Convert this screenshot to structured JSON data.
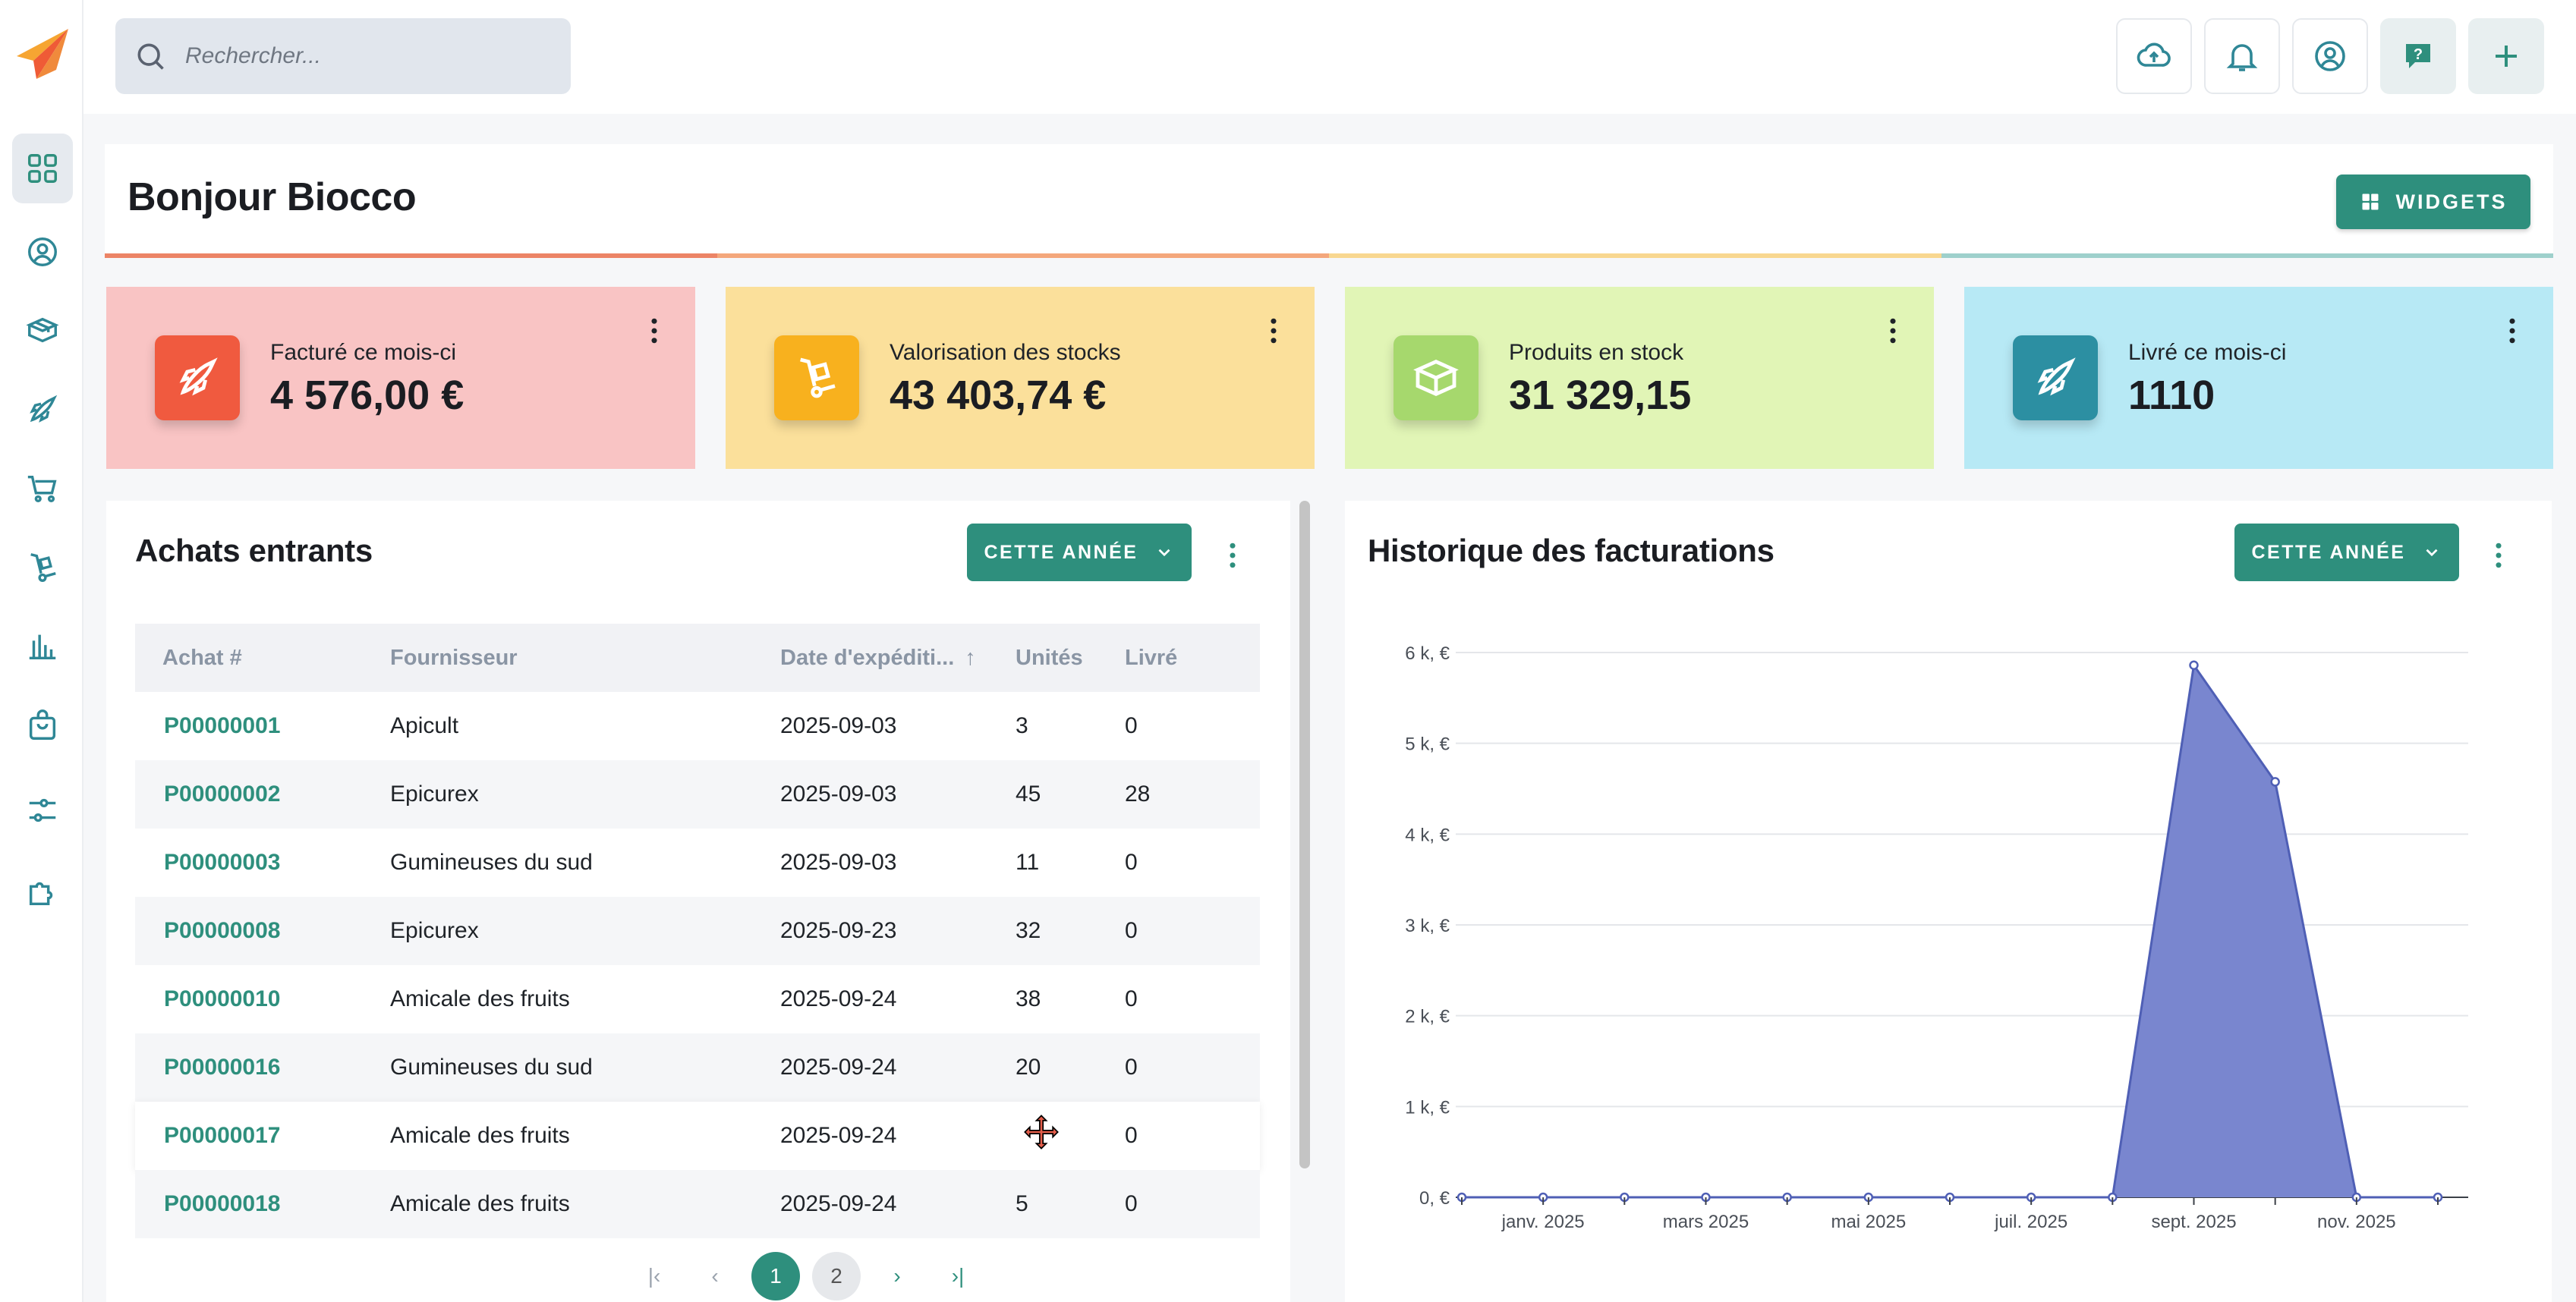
{
  "search": {
    "placeholder": "Rechercher..."
  },
  "header": {
    "title": "Bonjour Biocco",
    "widgets_label": "WIDGETS"
  },
  "colors": {
    "accent": "#2e8f7d",
    "chart_fill": "#7986cf",
    "chart_line": "#4f5fb5",
    "stripe_red": "#ec8466",
    "stripe_orange": "#f4a77c",
    "stripe_yellow": "#f8d790",
    "stripe_teal": "#9ed0cc"
  },
  "stats": [
    {
      "label": "Facturé ce mois-ci",
      "value": "4 576,00 €",
      "icon": "rocket-icon",
      "bg": "#f9c4c4",
      "icon_bg": "#f05a3f"
    },
    {
      "label": "Valorisation des stocks",
      "value": "43 403,74 €",
      "icon": "hand-truck-icon",
      "bg": "#fbe09b",
      "icon_bg": "#f8b11e"
    },
    {
      "label": "Produits en stock",
      "value": "31 329,15",
      "icon": "box-icon",
      "bg": "#e1f5b6",
      "icon_bg": "#a6d86d"
    },
    {
      "label": "Livré ce mois-ci",
      "value": "1110",
      "icon": "rocket-icon",
      "bg": "#b7e9f5",
      "icon_bg": "#2c8fa2"
    }
  ],
  "purchases": {
    "title": "Achats entrants",
    "period": "CETTE ANNÉE",
    "columns": [
      "Achat #",
      "Fournisseur",
      "Date d'expéditi...",
      "Unités",
      "Livré"
    ],
    "rows": [
      {
        "id": "P00000001",
        "supplier": "Apicult",
        "date": "2025-09-03",
        "units": "3",
        "delivered": "0"
      },
      {
        "id": "P00000002",
        "supplier": "Epicurex",
        "date": "2025-09-03",
        "units": "45",
        "delivered": "28"
      },
      {
        "id": "P00000003",
        "supplier": "Gumineuses du sud",
        "date": "2025-09-03",
        "units": "11",
        "delivered": "0"
      },
      {
        "id": "P00000008",
        "supplier": "Epicurex",
        "date": "2025-09-23",
        "units": "32",
        "delivered": "0"
      },
      {
        "id": "P00000010",
        "supplier": "Amicale des fruits",
        "date": "2025-09-24",
        "units": "38",
        "delivered": "0"
      },
      {
        "id": "P00000016",
        "supplier": "Gumineuses du sud",
        "date": "2025-09-24",
        "units": "20",
        "delivered": "0"
      },
      {
        "id": "P00000017",
        "supplier": "Amicale des fruits",
        "date": "2025-09-24",
        "units": "",
        "delivered": "0"
      },
      {
        "id": "P00000018",
        "supplier": "Amicale des fruits",
        "date": "2025-09-24",
        "units": "5",
        "delivered": "0"
      }
    ],
    "pagination": {
      "pages": [
        "1",
        "2"
      ],
      "current": "1"
    }
  },
  "billing": {
    "title": "Historique des facturations",
    "period": "CETTE ANNÉE"
  },
  "chart_data": {
    "type": "area",
    "title": "Historique des facturations",
    "x": [
      "2024-12",
      "2025-01",
      "2025-02",
      "2025-03",
      "2025-04",
      "2025-05",
      "2025-06",
      "2025-07",
      "2025-08",
      "2025-09",
      "2025-10",
      "2025-11",
      "2025-12"
    ],
    "x_tick_labels": [
      "janv. 2025",
      "mars 2025",
      "mai 2025",
      "juil. 2025",
      "sept. 2025",
      "nov. 2025"
    ],
    "x_tick_positions": [
      "2025-01",
      "2025-03",
      "2025-05",
      "2025-07",
      "2025-09",
      "2025-11"
    ],
    "series": [
      {
        "values": [
          0,
          0,
          0,
          0,
          0,
          0,
          0,
          0,
          0,
          5860,
          4576,
          0,
          0
        ]
      }
    ],
    "y_tick_labels": [
      "0, €",
      "1 k, €",
      "2 k, €",
      "3 k, €",
      "4 k, €",
      "5 k, €",
      "6 k, €"
    ],
    "ylim": [
      0,
      6000
    ],
    "grid": true
  }
}
